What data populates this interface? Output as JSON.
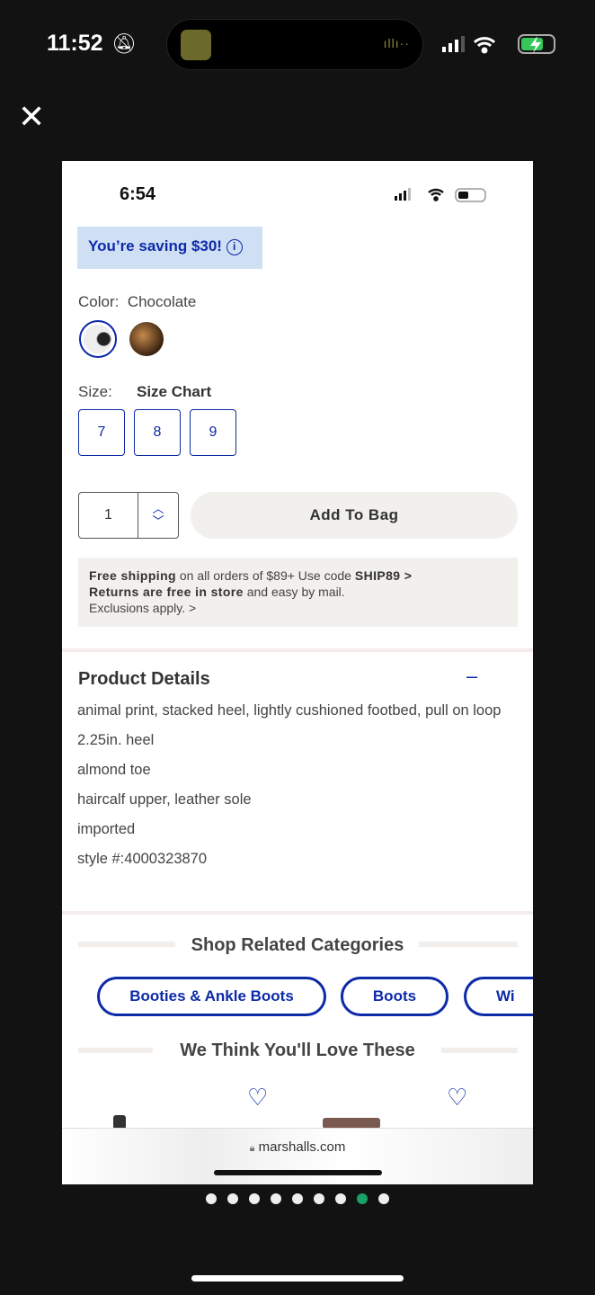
{
  "outer_status": {
    "time": "11:52"
  },
  "inner_status": {
    "time": "6:54"
  },
  "saving": {
    "text": "You’re saving $30!"
  },
  "color": {
    "label": "Color:",
    "value": "Chocolate"
  },
  "size": {
    "label": "Size:",
    "chart_link": "Size Chart",
    "options": [
      "7",
      "8",
      "9"
    ]
  },
  "quantity": {
    "value": "1"
  },
  "add_to_bag": "Add To Bag",
  "shipping": {
    "bold1": "Free shipping",
    "text1": " on all orders of $89+ Use code ",
    "code": "SHIP89 >",
    "bold2": "Returns are free in store",
    "text2": " and easy by mail.",
    "text3": "Exclusions apply. >"
  },
  "product_details": {
    "title": "Product Details",
    "collapse": "–",
    "items": [
      "animal print, stacked heel, lightly cushioned footbed, pull on loop",
      "2.25in. heel",
      "almond toe",
      "haircalf upper, leather sole",
      "imported",
      "style #:4000323870"
    ]
  },
  "related": {
    "title": "Shop Related Categories",
    "categories": [
      "Booties & Ankle Boots",
      "Boots",
      "Wi"
    ]
  },
  "recommend": {
    "title": "We Think You'll Love These"
  },
  "browser": {
    "url": "marshalls.com"
  },
  "pager": {
    "count": 9,
    "active": 8,
    "active_color": "#1aa068"
  },
  "colors": {
    "accent": "#0d2aa8"
  }
}
